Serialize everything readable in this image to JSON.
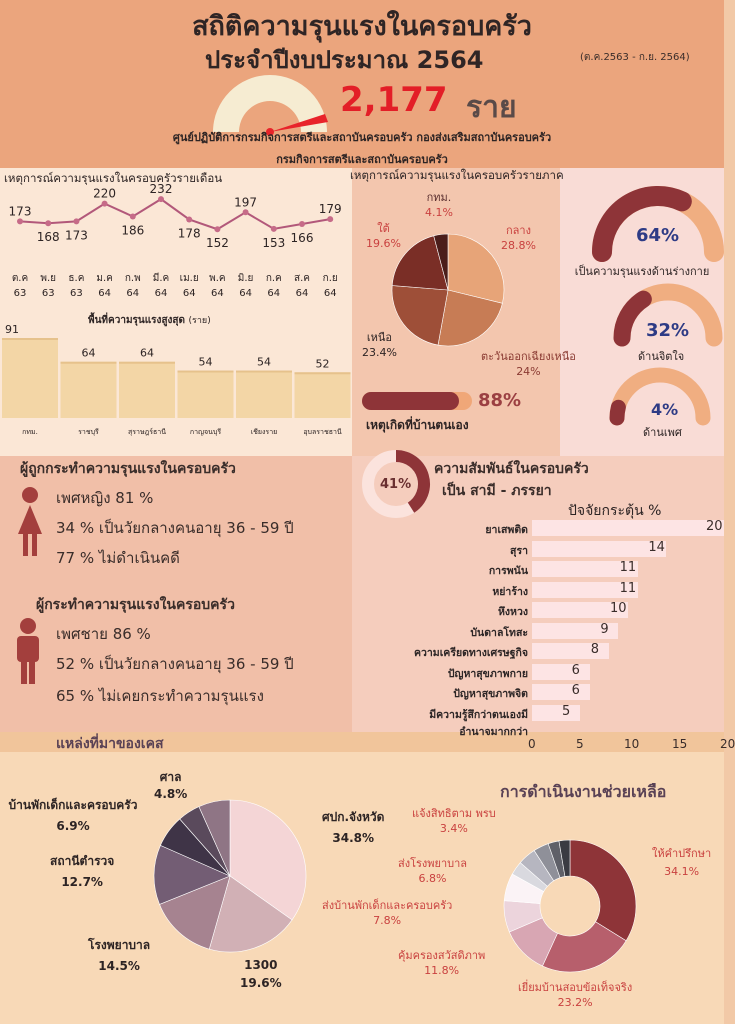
{
  "header": {
    "title_line1": "สถิติความรุนแรงในครอบครัว",
    "title_line2": "ประจำปีงบประมาณ 2564",
    "period": "(ต.ค.2563 - ก.ย. 2564)",
    "total": "2,177",
    "total_unit": "ราย",
    "source_line1": "ศูนย์ปฏิบัติการกรมกิจการสตรีและสถาบันครอบครัว กองส่งเสริมสถาบันครอบครัว",
    "source_line2": "กรมกิจการสตรีและสถาบันครอบครัว"
  },
  "monthly": {
    "title": "เหตุการณ์ความรุนแรงในครอบครัวรายเดือน",
    "months": [
      {
        "m": "ต.ค",
        "y": "63"
      },
      {
        "m": "พ.ย",
        "y": "63"
      },
      {
        "m": "ธ.ค",
        "y": "63"
      },
      {
        "m": "ม.ค",
        "y": "64"
      },
      {
        "m": "ก.พ",
        "y": "64"
      },
      {
        "m": "มี.ค",
        "y": "64"
      },
      {
        "m": "เม.ย",
        "y": "64"
      },
      {
        "m": "พ.ค",
        "y": "64"
      },
      {
        "m": "มิ.ย",
        "y": "64"
      },
      {
        "m": "ก.ค",
        "y": "64"
      },
      {
        "m": "ส.ค",
        "y": "64"
      },
      {
        "m": "ก.ย",
        "y": "64"
      }
    ],
    "values": [
      173,
      168,
      173,
      220,
      186,
      232,
      178,
      152,
      197,
      153,
      166,
      179
    ]
  },
  "top_areas": {
    "title": "พื้นที่ความรุนแรงสูงสุด",
    "unit": "(ราย)",
    "items": [
      {
        "name": "กทม.",
        "value": 91
      },
      {
        "name": "ราชบุรี",
        "value": 64
      },
      {
        "name": "สุราษฎร์ธานี",
        "value": 64
      },
      {
        "name": "กาญจนบุรี",
        "value": 54
      },
      {
        "name": "เชียงราย",
        "value": 54
      },
      {
        "name": "อุบลราชธานี",
        "value": 52
      }
    ]
  },
  "regional": {
    "title": "เหตุการณ์ความรุนแรงในครอบครัวรายภาค",
    "slices": [
      {
        "name": "กลาง",
        "pct": "28.8%",
        "value": 28.8,
        "color": "#e7a478"
      },
      {
        "name": "ตะวันออกเฉียงเหนือ",
        "pct": "24%",
        "value": 24,
        "color": "#c77c55"
      },
      {
        "name": "เหนือ",
        "pct": "23.4%",
        "value": 23.4,
        "color": "#9e4f38"
      },
      {
        "name": "ใต้",
        "pct": "19.6%",
        "value": 19.6,
        "color": "#7a2e26"
      },
      {
        "name": "กทม.",
        "pct": "4.1%",
        "value": 4.1,
        "color": "#4a1d1a"
      }
    ],
    "home_pct": "88%",
    "home_value": 88,
    "home_label": "เหตุเกิดที่บ้านตนเอง"
  },
  "violence_types": [
    {
      "pct": "64%",
      "value": 64,
      "label": "เป็นความรุนแรงด้านร่างกาย"
    },
    {
      "pct": "32%",
      "value": 32,
      "label": "ด้านจิตใจ"
    },
    {
      "pct": "4%",
      "value": 4,
      "label": "ด้านเพศ"
    }
  ],
  "victims": {
    "title": "ผู้ถูกกระทำความรุนแรงในครอบครัว",
    "lines": [
      "เพศหญิง 81 %",
      "34 % เป็นวัยกลางคนอายุ 36 - 59 ปี",
      "77 %  ไม่ดำเนินคดี"
    ]
  },
  "perpetrators": {
    "title": "ผู้กระทำความรุนแรงในครอบครัว",
    "lines": [
      "เพศชาย 86 %",
      "52 % เป็นวัยกลางคนอายุ 36 - 59 ปี",
      "65 %  ไม่เคยกระทำความรุนแรง"
    ]
  },
  "relationship": {
    "pct": "41%",
    "value": 41,
    "line1": "ความสัมพันธ์ในครอบครัว",
    "line2": "เป็น สามี - ภรรยา"
  },
  "factors": {
    "title": "ปัจจัยกระตุ้น %",
    "items": [
      {
        "name": "ยาเสพติด",
        "value": 20
      },
      {
        "name": "สุรา",
        "value": 14
      },
      {
        "name": "การพนัน",
        "value": 11
      },
      {
        "name": "หย่าร้าง",
        "value": 11
      },
      {
        "name": "หึงหวง",
        "value": 10
      },
      {
        "name": "บันดาลโทสะ",
        "value": 9
      },
      {
        "name": "ความเครียดทางเศรษฐกิจ",
        "value": 8
      },
      {
        "name": "ปัญหาสุขภาพกาย",
        "value": 6
      },
      {
        "name": "ปัญหาสุขภาพจิต",
        "value": 6
      },
      {
        "name": "มีความรู้สึกว่าตนเองมีอำนาจมากกว่า",
        "value": 5
      }
    ],
    "ticks": [
      "0",
      "5",
      "10",
      "15",
      "20"
    ]
  },
  "sources": {
    "title": "แหล่งที่มาของเคส",
    "slices": [
      {
        "name": "ศปก.จังหวัด",
        "pct": "34.8%",
        "value": 34.8,
        "color": "#f4d5d6"
      },
      {
        "name": "1300",
        "pct": "19.6%",
        "value": 19.6,
        "color": "#d1b0b5"
      },
      {
        "name": "โรงพยาบาล",
        "pct": "14.5%",
        "value": 14.5,
        "color": "#a68390"
      },
      {
        "name": "สถานีตำรวจ",
        "pct": "12.7%",
        "value": 12.7,
        "color": "#735d74"
      },
      {
        "name": "บ้านพักเด็กและครอบครัว",
        "pct": "6.9%",
        "value": 6.9,
        "color": "#3f3447"
      },
      {
        "name": "ศาล",
        "pct": "4.8%",
        "value": 4.8,
        "color": "#5a4a5c"
      },
      {
        "name": "",
        "pct": "",
        "value": 6.7,
        "color": "#8f7585"
      }
    ]
  },
  "assistance": {
    "title": "การดำเนินงานช่วยเหลือ",
    "slices": [
      {
        "name": "ให้คำปรึกษา",
        "pct": "34.1%",
        "value": 34.1,
        "color": "#8e3438"
      },
      {
        "name": "เยี่ยมบ้านสอบข้อเท็จจริง",
        "pct": "23.2%",
        "value": 23.2,
        "color": "#b75f6c"
      },
      {
        "name": "คุ้มครองสวัสดิภาพ",
        "pct": "11.8%",
        "value": 11.8,
        "color": "#d8a6b3"
      },
      {
        "name": "ส่งบ้านพักเด็กและครอบครัว",
        "pct": "7.8%",
        "value": 7.8,
        "color": "#ecd4dc"
      },
      {
        "name": "ส่งโรงพยาบาล",
        "pct": "6.8%",
        "value": 6.8,
        "color": "#fbf3f6"
      },
      {
        "name": "แจ้งสิทธิตาม พรบ",
        "pct": "3.4%",
        "value": 3.4,
        "color": "#d9d9df"
      },
      {
        "name": "",
        "pct": "",
        "value": 4.5,
        "color": "#b6b6c0"
      },
      {
        "name": "",
        "pct": "",
        "value": 3.8,
        "color": "#8f9099"
      },
      {
        "name": "",
        "pct": "",
        "value": 2.7,
        "color": "#5f6068"
      },
      {
        "name": "",
        "pct": "",
        "value": 2.7,
        "color": "#3a3b42"
      }
    ]
  },
  "chart_data": [
    {
      "type": "line",
      "title": "เหตุการณ์ความรุนแรงในครอบครัวรายเดือน",
      "categories": [
        "ต.ค 63",
        "พ.ย 63",
        "ธ.ค 63",
        "ม.ค 64",
        "ก.พ 64",
        "มี.ค 64",
        "เม.ย 64",
        "พ.ค 64",
        "มิ.ย 64",
        "ก.ค 64",
        "ส.ค 64",
        "ก.ย 64"
      ],
      "values": [
        173,
        168,
        173,
        220,
        186,
        232,
        178,
        152,
        197,
        153,
        166,
        179
      ]
    },
    {
      "type": "bar",
      "title": "พื้นที่ความรุนแรงสูงสุด (ราย)",
      "categories": [
        "กทม.",
        "ราชบุรี",
        "สุราษฎร์ธานี",
        "กาญจนบุรี",
        "เชียงราย",
        "อุบลราชธานี"
      ],
      "values": [
        91,
        64,
        64,
        54,
        54,
        52
      ]
    },
    {
      "type": "pie",
      "title": "เหตุการณ์ความรุนแรงในครอบครัวรายภาค",
      "categories": [
        "กลาง",
        "ตะวันออกเฉียงเหนือ",
        "เหนือ",
        "ใต้",
        "กทม."
      ],
      "values": [
        28.8,
        24,
        23.4,
        19.6,
        4.1
      ]
    },
    {
      "type": "bar",
      "title": "ปัจจัยกระตุ้น %",
      "categories": [
        "ยาเสพติด",
        "สุรา",
        "การพนัน",
        "หย่าร้าง",
        "หึงหวง",
        "บันดาลโทสะ",
        "ความเครียดทางเศรษฐกิจ",
        "ปัญหาสุขภาพกาย",
        "ปัญหาสุขภาพจิต",
        "มีความรู้สึกว่าตนเองมีอำนาจมากกว่า"
      ],
      "values": [
        20,
        14,
        11,
        11,
        10,
        9,
        8,
        6,
        6,
        5
      ],
      "xlim": [
        0,
        20
      ]
    },
    {
      "type": "pie",
      "title": "แหล่งที่มาของเคส",
      "categories": [
        "ศปก.จังหวัด",
        "1300",
        "โรงพยาบาล",
        "สถานีตำรวจ",
        "บ้านพักเด็กและครอบครัว",
        "ศาล"
      ],
      "values": [
        34.8,
        19.6,
        14.5,
        12.7,
        6.9,
        4.8
      ]
    },
    {
      "type": "pie",
      "title": "การดำเนินงานช่วยเหลือ",
      "categories": [
        "ให้คำปรึกษา",
        "เยี่ยมบ้านสอบข้อเท็จจริง",
        "คุ้มครองสวัสดิภาพ",
        "ส่งบ้านพักเด็กและครอบครัว",
        "ส่งโรงพยาบาล",
        "แจ้งสิทธิตาม พรบ"
      ],
      "values": [
        34.1,
        23.2,
        11.8,
        7.8,
        6.8,
        3.4
      ]
    }
  ]
}
